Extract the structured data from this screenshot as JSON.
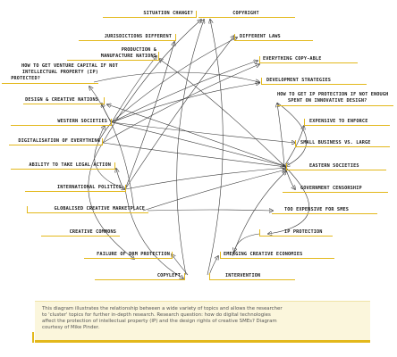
{
  "diagram": {
    "nodes": {
      "situation_change": "SITUATION CHANGE?",
      "copyright": "COPYRIGHT",
      "jurisdictions_different": "JURISDICTIONS DIFFERENT",
      "different_laws": "DIFFERENT LAWS",
      "production_line1": "PRODUCTION &",
      "production_line2": "MANUFACTURE NATIONS",
      "everything_copyable": "EVERYTHING COPY-ABLE",
      "venture_line1": "HOW TO GET VENTURE CAPITAL IF NOT",
      "venture_line2": "INTELLECTUAL PROPERTY (IP)",
      "venture_line3": "PROTECTED?",
      "development_strategies": "DEVELOPMENT STRATEGIES",
      "ip_line1": "HOW TO GET IP PROTECTION IF NOT ENOUGH",
      "ip_line2": "SPENT ON INNOVATIVE DESIGN?",
      "design_creative_nations": "DESIGN & CREATIVE NATIONS",
      "western_societies": "WESTERN SOCIETIES",
      "expensive_to_enforce": "EXPENSIVE TO ENFORCE",
      "digitalisation": "DIGITALISATION OF EVERYTHING",
      "small_vs_large": "SMALL BUSINESS VS. LARGE",
      "ability_legal_action": "ABILITY TO TAKE LEGAL ACTION",
      "eastern_societies": "EASTERN SOCIETIES",
      "international_politics": "INTERNATIONAL POLITICS",
      "government_censorship": "GOVERNMENT CENSORSHIP",
      "globalised_marketplace": "GLOBALISED CREATIVE MARKETPLACE",
      "too_expensive_smes": "TOO EXPENSIVE FOR SMES",
      "creative_commons": "CREATIVE COMMONS",
      "ip_protection": "IP PROTECTION",
      "failure_drm": "FAILURE OF DRM PROTECTION",
      "emerging_economies": "EMERGING CREATIVE ECONOMIES",
      "copyleft": "COPYLEFT",
      "intervention": "INTERVENTION"
    },
    "caption": {
      "line1": "This diagram illustrates the relationship between a wide variety of topics and allows the researcher",
      "line2": "to 'cluster' topics for further in-depth research. Research question: how do digital technologies",
      "line3": "affect the protection of intellectual property (IP) and the design rights of creative SMEs? Diagram",
      "line4": "courtesy of Mike Pinder."
    },
    "colors": {
      "accent": "#e3b81b",
      "line": "#3a3a3a",
      "caption_bg": "#fbf6dc"
    }
  }
}
